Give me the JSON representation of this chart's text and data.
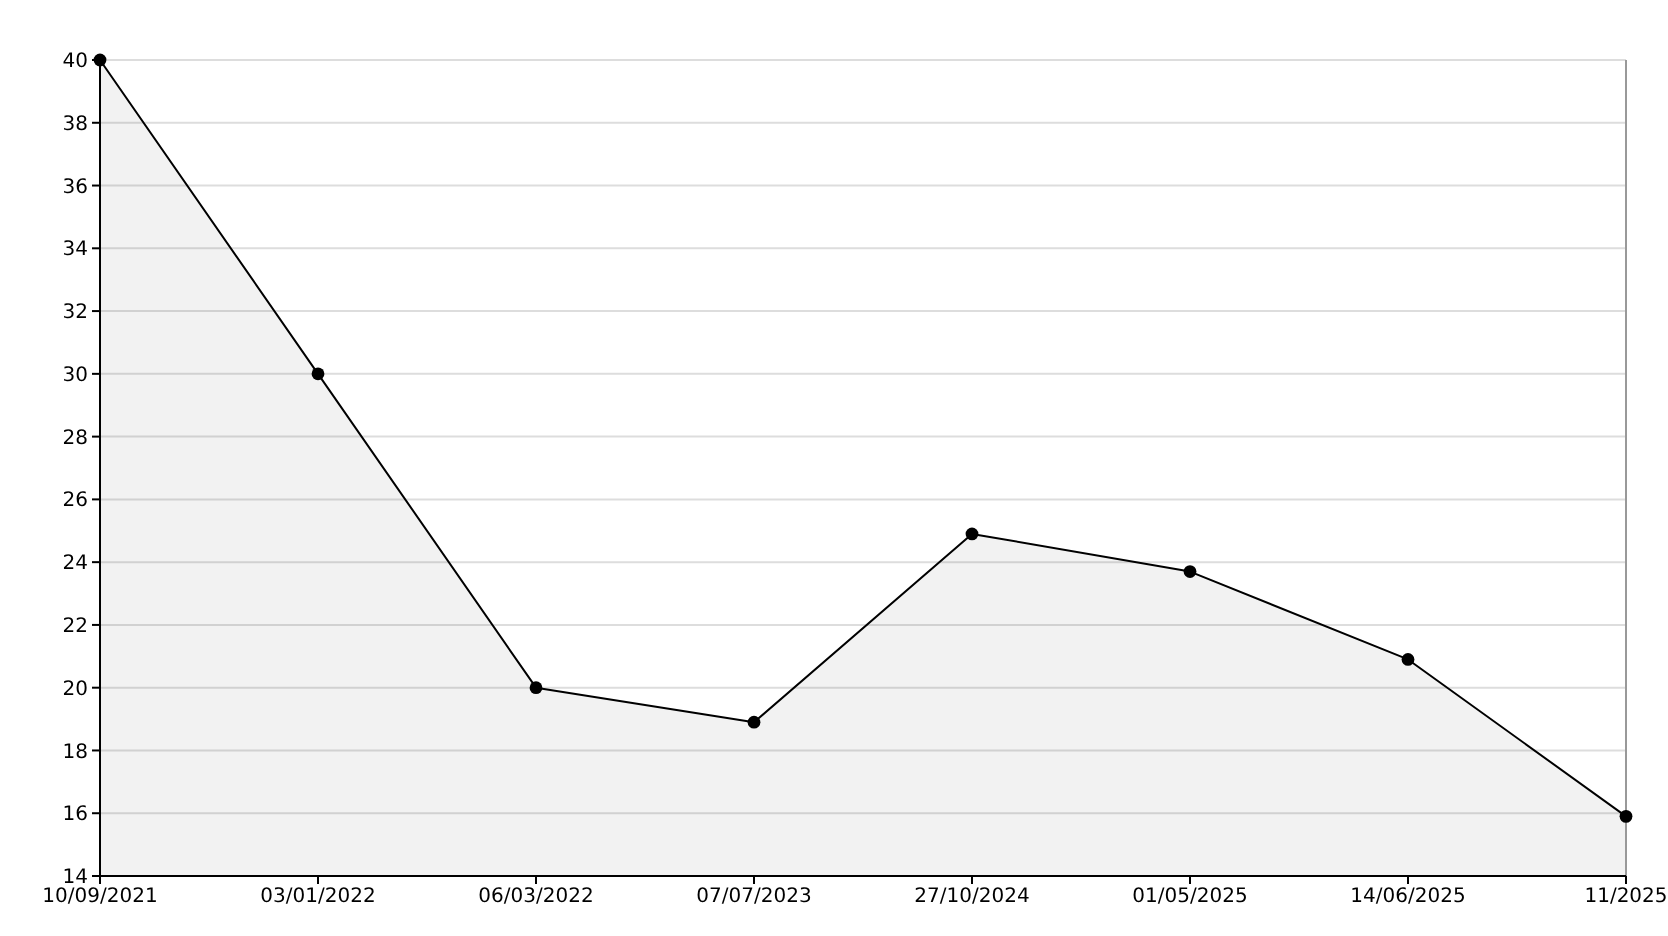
{
  "chart_data": {
    "type": "area",
    "categories": [
      "10/09/2021",
      "03/01/2022",
      "06/03/2022",
      "07/07/2023",
      "27/10/2024",
      "01/05/2025",
      "14/06/2025",
      "11/2025"
    ],
    "series": [
      {
        "color": "#000000",
        "values": [
          40,
          30,
          20,
          18.9,
          24.9,
          23.7,
          20.9,
          15.9
        ]
      }
    ],
    "ylim": [
      14,
      40
    ],
    "yticks": [
      14,
      16,
      18,
      20,
      22,
      24,
      26,
      28,
      30,
      32,
      34,
      36,
      38,
      40
    ],
    "grid": "y",
    "marker": "circle"
  }
}
